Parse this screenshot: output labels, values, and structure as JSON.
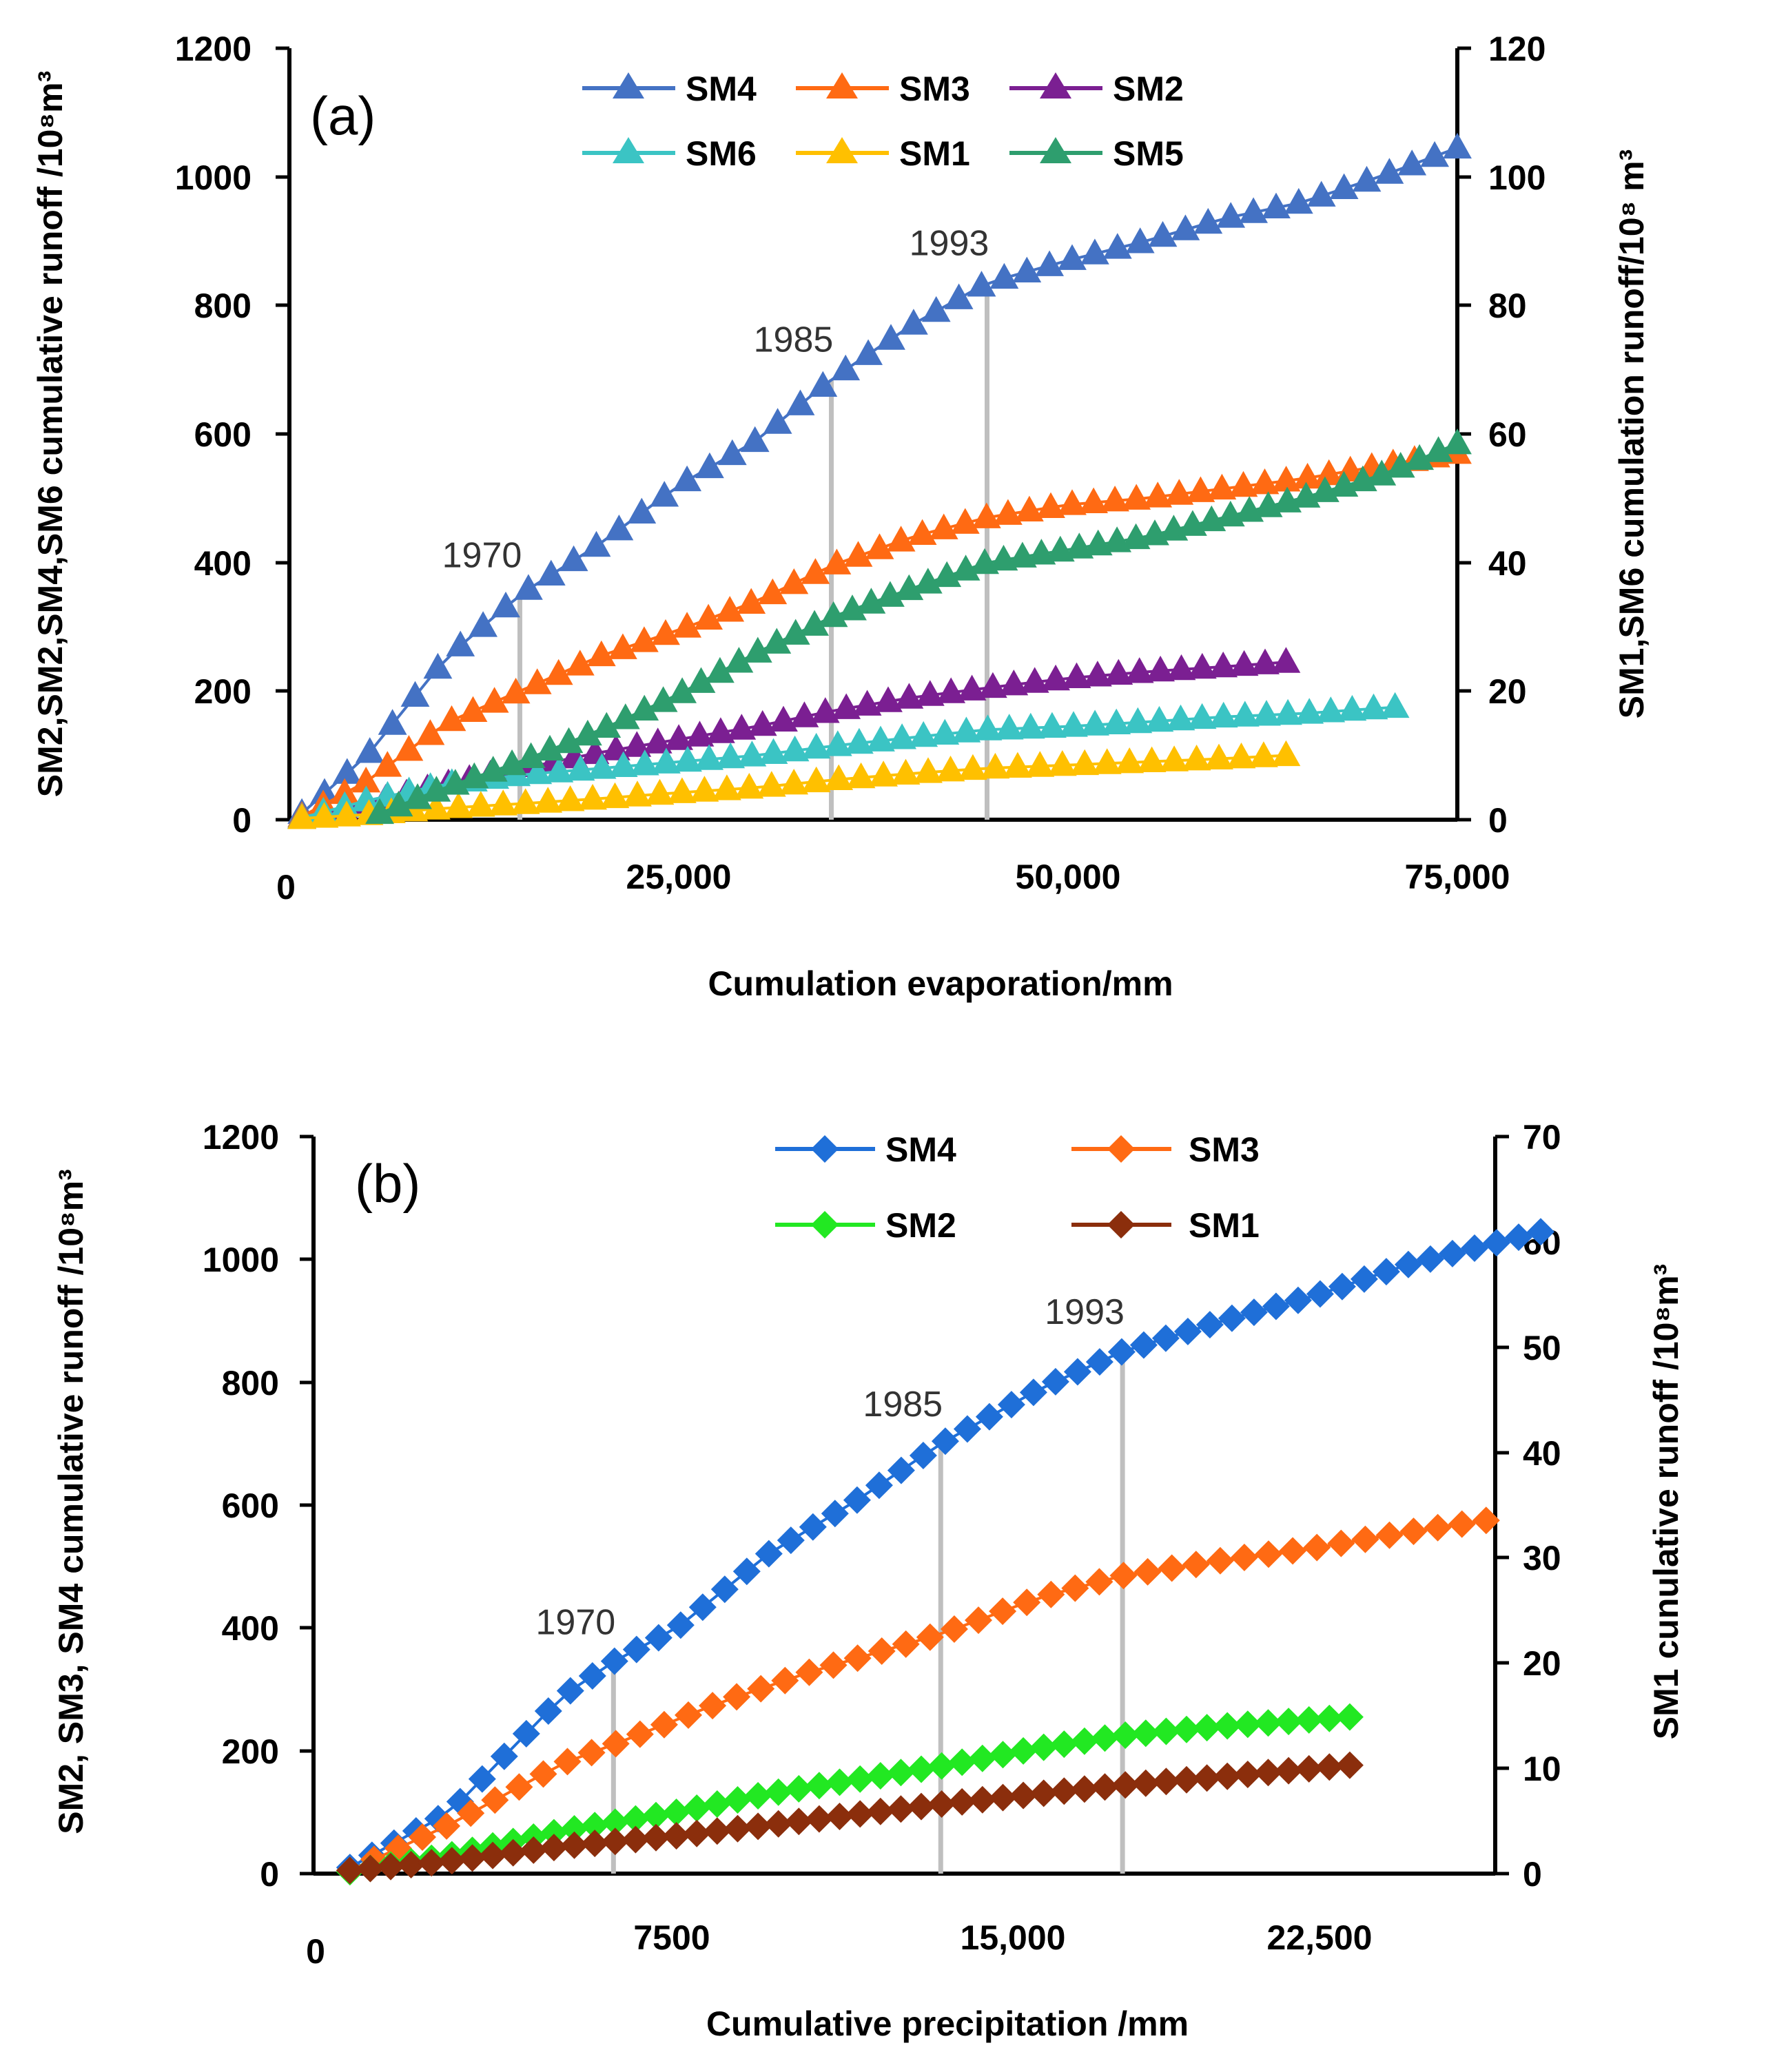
{
  "chart_data": [
    {
      "type": "line",
      "panel_label": "(a)",
      "xlabel": "Cumulation evaporation/mm",
      "ylabel_left": "SM2,SM2,SM4,SM6 cumulative runoff /10⁸m³",
      "ylabel_right": "SM1,SM6 cumulation runoff/10⁸ m³",
      "xlim": [
        0,
        75000
      ],
      "ylim_left": [
        0,
        1200
      ],
      "ylim_right": [
        0,
        120
      ],
      "x_ticks": [
        "0",
        "25,000",
        "50,000",
        "75,000"
      ],
      "y_ticks_left": [
        "0",
        "200",
        "400",
        "600",
        "800",
        "1000",
        "1200"
      ],
      "y_ticks_right": [
        "0",
        "20",
        "40",
        "60",
        "80",
        "100",
        "120"
      ],
      "marker": "triangle",
      "legend": [
        "SM4",
        "SM3",
        "SM2",
        "SM6",
        "SM1",
        "SM5"
      ],
      "vlines": [
        {
          "label": "1970",
          "x": 14800,
          "y": 350
        },
        {
          "label": "1985",
          "x": 34800,
          "y": 685
        },
        {
          "label": "1993",
          "x": 44800,
          "y": 835
        }
      ],
      "series": [
        {
          "name": "SM4",
          "color": "#4472C4",
          "axis": "left",
          "x_start": 800,
          "x_end": 75000,
          "n": 52,
          "path": [
            [
              800,
              10
            ],
            [
              5000,
              100
            ],
            [
              10000,
              250
            ],
            [
              14800,
              350
            ],
            [
              20000,
              430
            ],
            [
              25000,
              520
            ],
            [
              30000,
              590
            ],
            [
              34800,
              685
            ],
            [
              40000,
              770
            ],
            [
              44800,
              835
            ],
            [
              50000,
              870
            ],
            [
              55000,
              900
            ],
            [
              60000,
              935
            ],
            [
              65000,
              960
            ],
            [
              70000,
              1000
            ],
            [
              75000,
              1045
            ]
          ]
        },
        {
          "name": "SM3",
          "color": "#FF6A13",
          "axis": "left",
          "x_start": 800,
          "x_end": 75000,
          "n": 55,
          "path": [
            [
              800,
              5
            ],
            [
              5000,
              60
            ],
            [
              10000,
              150
            ],
            [
              14800,
              200
            ],
            [
              20000,
              255
            ],
            [
              25000,
              295
            ],
            [
              30000,
              340
            ],
            [
              34800,
              395
            ],
            [
              40000,
              440
            ],
            [
              44800,
              470
            ],
            [
              50000,
              490
            ],
            [
              55000,
              500
            ],
            [
              60000,
              515
            ],
            [
              65000,
              530
            ],
            [
              70000,
              550
            ],
            [
              75000,
              570
            ]
          ]
        },
        {
          "name": "SM2",
          "color": "#7B1F92",
          "axis": "left",
          "x_start": 800,
          "x_end": 64000,
          "n": 48,
          "path": [
            [
              800,
              3
            ],
            [
              5000,
              25
            ],
            [
              10000,
              55
            ],
            [
              15000,
              80
            ],
            [
              20000,
              105
            ],
            [
              25000,
              125
            ],
            [
              30000,
              145
            ],
            [
              35000,
              170
            ],
            [
              40000,
              190
            ],
            [
              44800,
              205
            ],
            [
              50000,
              220
            ],
            [
              55000,
              230
            ],
            [
              60000,
              238
            ],
            [
              64000,
              245
            ]
          ]
        },
        {
          "name": "SM6",
          "color": "#3BC4C4",
          "axis": "left",
          "x_start": 800,
          "x_end": 71000,
          "n": 52,
          "path": [
            [
              800,
              3
            ],
            [
              5000,
              30
            ],
            [
              10000,
              55
            ],
            [
              15000,
              70
            ],
            [
              20000,
              80
            ],
            [
              25000,
              90
            ],
            [
              30000,
              100
            ],
            [
              35000,
              115
            ],
            [
              40000,
              128
            ],
            [
              44800,
              140
            ],
            [
              50000,
              145
            ],
            [
              55000,
              152
            ],
            [
              60000,
              160
            ],
            [
              65000,
              165
            ],
            [
              71000,
              175
            ]
          ]
        },
        {
          "name": "SM1",
          "color": "#FFC000",
          "axis": "left",
          "x_start": 800,
          "x_end": 64000,
          "n": 45,
          "path": [
            [
              800,
              2
            ],
            [
              5000,
              8
            ],
            [
              10000,
              18
            ],
            [
              15000,
              25
            ],
            [
              20000,
              33
            ],
            [
              25000,
              42
            ],
            [
              30000,
              50
            ],
            [
              35000,
              62
            ],
            [
              40000,
              72
            ],
            [
              44800,
              80
            ],
            [
              50000,
              85
            ],
            [
              55000,
              90
            ],
            [
              60000,
              95
            ],
            [
              64000,
              100
            ]
          ]
        },
        {
          "name": "SM5",
          "color": "#2E9E6E",
          "axis": "left",
          "x_start": 5800,
          "x_end": 75000,
          "n": 58,
          "path": [
            [
              5800,
              10
            ],
            [
              10000,
              50
            ],
            [
              14800,
              90
            ],
            [
              20000,
              140
            ],
            [
              25000,
              195
            ],
            [
              30000,
              260
            ],
            [
              34800,
              315
            ],
            [
              40000,
              360
            ],
            [
              44800,
              400
            ],
            [
              50000,
              420
            ],
            [
              55000,
              440
            ],
            [
              60000,
              470
            ],
            [
              65000,
              500
            ],
            [
              70000,
              535
            ],
            [
              75000,
              585
            ]
          ]
        }
      ]
    },
    {
      "type": "line",
      "panel_label": "(b)",
      "xlabel": "Cumulative precipitation /mm",
      "ylabel_left": "SM2, SM3, SM4 cumulative runoff /10⁸m³",
      "ylabel_right": "SM1 cunulative runoff /10⁸m³",
      "xlim": [
        0,
        26000
      ],
      "ylim_left": [
        0,
        1200
      ],
      "ylim_right": [
        0,
        70
      ],
      "x_ticks": [
        "0",
        "7500",
        "15,000",
        "22,500"
      ],
      "y_ticks_left": [
        "0",
        "200",
        "400",
        "600",
        "800",
        "1000",
        "1200"
      ],
      "y_ticks_right": [
        "0",
        "10",
        "20",
        "30",
        "40",
        "50",
        "60",
        "70"
      ],
      "marker": "diamond",
      "legend": [
        "SM4",
        "SM3",
        "SM2",
        "SM1"
      ],
      "vlines": [
        {
          "label": "1970",
          "x": 6600,
          "y": 345
        },
        {
          "label": "1985",
          "x": 13800,
          "y": 700
        },
        {
          "label": "1993",
          "x": 17800,
          "y": 850
        }
      ],
      "series": [
        {
          "name": "SM4",
          "color": "#1F6FD8",
          "axis": "left",
          "x_start": 800,
          "x_end": 27000,
          "n": 55,
          "path": [
            [
              800,
              10
            ],
            [
              3000,
              100
            ],
            [
              5500,
              290
            ],
            [
              6600,
              345
            ],
            [
              8000,
              400
            ],
            [
              10000,
              520
            ],
            [
              12000,
              610
            ],
            [
              13800,
              700
            ],
            [
              16000,
              790
            ],
            [
              17800,
              850
            ],
            [
              20000,
              900
            ],
            [
              22000,
              940
            ],
            [
              24000,
              990
            ],
            [
              27000,
              1045
            ]
          ]
        },
        {
          "name": "SM3",
          "color": "#FF6A13",
          "axis": "left",
          "x_start": 800,
          "x_end": 25800,
          "n": 48,
          "path": [
            [
              800,
              5
            ],
            [
              3000,
              80
            ],
            [
              5500,
              180
            ],
            [
              6600,
              210
            ],
            [
              9000,
              280
            ],
            [
              11000,
              330
            ],
            [
              13800,
              390
            ],
            [
              16000,
              450
            ],
            [
              17800,
              485
            ],
            [
              20000,
              510
            ],
            [
              22000,
              530
            ],
            [
              24000,
              555
            ],
            [
              25800,
              575
            ]
          ]
        },
        {
          "name": "SM2",
          "color": "#22E822",
          "axis": "left",
          "x_start": 800,
          "x_end": 22800,
          "n": 50,
          "path": [
            [
              800,
              3
            ],
            [
              3000,
              30
            ],
            [
              5500,
              70
            ],
            [
              8000,
              100
            ],
            [
              10000,
              130
            ],
            [
              13800,
              175
            ],
            [
              16000,
              205
            ],
            [
              17800,
              225
            ],
            [
              20000,
              240
            ],
            [
              22800,
              255
            ]
          ]
        },
        {
          "name": "SM1",
          "color": "#8B2E0C",
          "axis": "right",
          "x_start": 800,
          "x_end": 22800,
          "n": 50,
          "path": [
            [
              800,
              0.3
            ],
            [
              3000,
              1.2
            ],
            [
              5500,
              2.6
            ],
            [
              8000,
              3.6
            ],
            [
              10000,
              4.6
            ],
            [
              13800,
              6.6
            ],
            [
              16000,
              7.6
            ],
            [
              17800,
              8.4
            ],
            [
              20000,
              9.2
            ],
            [
              22800,
              10.3
            ]
          ]
        }
      ]
    }
  ]
}
